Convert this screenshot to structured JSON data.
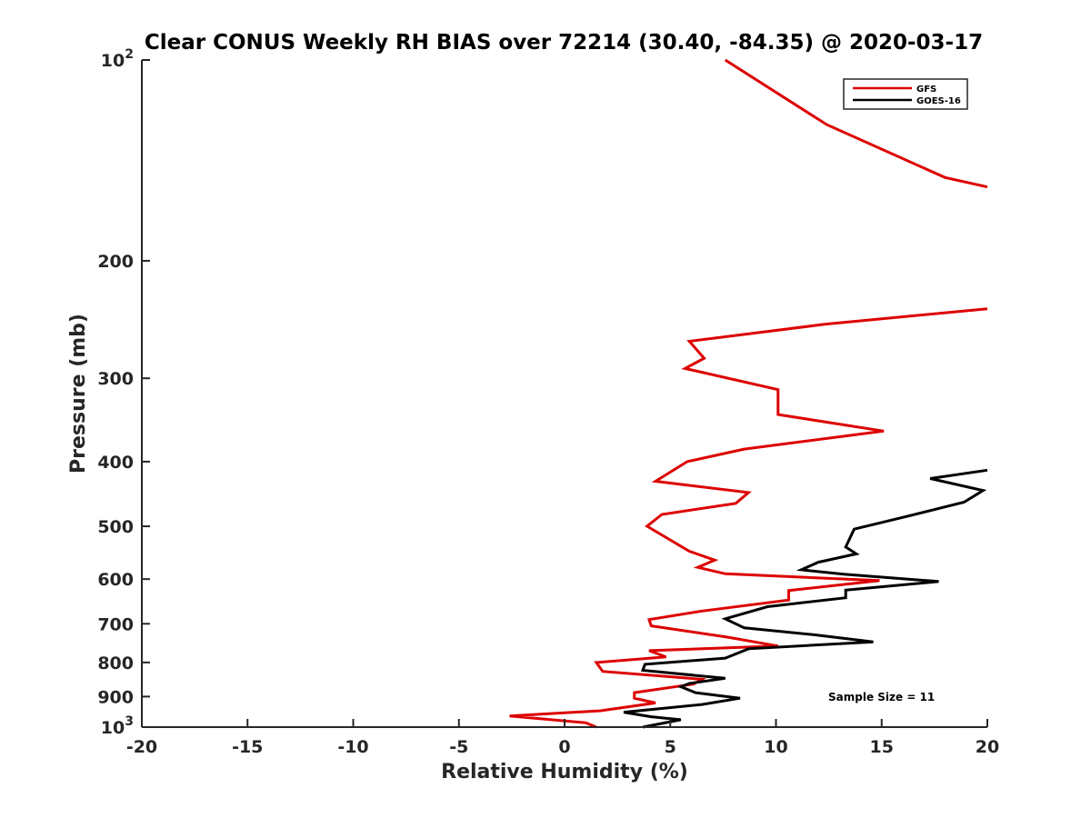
{
  "chart_data": {
    "type": "line",
    "title": "Clear CONUS Weekly RH BIAS over 72214 (30.40, -84.35) @ 2020-03-17",
    "xlabel": "Relative Humidity (%)",
    "ylabel": "Pressure (mb)",
    "xlim": [
      -20,
      20
    ],
    "ylim": [
      100,
      1000
    ],
    "yscale": "log",
    "y_reversed": true,
    "grid": false,
    "x_ticks": [
      -20,
      -15,
      -10,
      -5,
      0,
      5,
      10,
      15,
      20
    ],
    "x_tick_labels": [
      "-20",
      "-15",
      "-10",
      "-5",
      "0",
      "5",
      "10",
      "15",
      "20"
    ],
    "y_ticks": [
      100,
      200,
      300,
      400,
      500,
      600,
      700,
      800,
      900,
      1000
    ],
    "y_tick_labels": [
      {
        "base": "10",
        "exp": "2"
      },
      {
        "base": "200",
        "exp": ""
      },
      {
        "base": "300",
        "exp": ""
      },
      {
        "base": "400",
        "exp": ""
      },
      {
        "base": "500",
        "exp": ""
      },
      {
        "base": "600",
        "exp": ""
      },
      {
        "base": "700",
        "exp": ""
      },
      {
        "base": "800",
        "exp": ""
      },
      {
        "base": "900",
        "exp": ""
      },
      {
        "base": "10",
        "exp": "3"
      }
    ],
    "legend_position": "top-right",
    "annotation": "Sample Size = 11",
    "series": [
      {
        "name": "GFS",
        "color": "#dd0000",
        "points": [
          [
            7.6,
            100
          ],
          [
            12.4,
            125
          ],
          [
            18.0,
            150
          ],
          [
            20.0,
            155
          ],
          [
            null,
            null
          ],
          [
            20.0,
            236
          ],
          [
            12.3,
            249
          ],
          [
            5.9,
            264
          ],
          [
            6.6,
            280
          ],
          [
            5.7,
            290
          ],
          [
            10.1,
            312
          ],
          [
            10.1,
            340
          ],
          [
            15.1,
            360
          ],
          [
            8.5,
            383
          ],
          [
            5.8,
            400
          ],
          [
            4.3,
            428
          ],
          [
            8.7,
            445
          ],
          [
            8.1,
            462
          ],
          [
            4.6,
            480
          ],
          [
            3.9,
            500
          ],
          [
            5.9,
            545
          ],
          [
            7.1,
            562
          ],
          [
            6.3,
            576
          ],
          [
            7.6,
            589
          ],
          [
            14.9,
            603
          ],
          [
            10.6,
            624
          ],
          [
            10.6,
            645
          ],
          [
            6.5,
            670
          ],
          [
            4.0,
            690
          ],
          [
            4.1,
            705
          ],
          [
            7.7,
            733
          ],
          [
            10.1,
            756
          ],
          [
            4.0,
            768
          ],
          [
            4.8,
            785
          ],
          [
            1.5,
            800
          ],
          [
            1.8,
            825
          ],
          [
            6.5,
            848
          ],
          [
            6.1,
            862
          ],
          [
            3.3,
            888
          ],
          [
            3.3,
            905
          ],
          [
            4.3,
            920
          ],
          [
            1.7,
            945
          ],
          [
            -2.6,
            962
          ],
          [
            1.0,
            985
          ],
          [
            1.5,
            1000
          ]
        ]
      },
      {
        "name": "GOES-16",
        "color": "#000000",
        "points": [
          [
            20.0,
            412
          ],
          [
            17.3,
            424
          ],
          [
            19.8,
            442
          ],
          [
            18.9,
            460
          ],
          [
            16.1,
            484
          ],
          [
            13.7,
            505
          ],
          [
            13.3,
            537
          ],
          [
            13.8,
            550
          ],
          [
            12.0,
            566
          ],
          [
            11.2,
            581
          ],
          [
            13.2,
            590
          ],
          [
            17.7,
            605
          ],
          [
            13.3,
            623
          ],
          [
            13.3,
            640
          ],
          [
            9.6,
            660
          ],
          [
            7.6,
            688
          ],
          [
            8.5,
            710
          ],
          [
            11.8,
            727
          ],
          [
            14.6,
            745
          ],
          [
            8.7,
            763
          ],
          [
            7.6,
            788
          ],
          [
            3.8,
            805
          ],
          [
            3.7,
            822
          ],
          [
            7.6,
            845
          ],
          [
            5.9,
            860
          ],
          [
            5.5,
            870
          ],
          [
            6.2,
            888
          ],
          [
            8.3,
            905
          ],
          [
            6.5,
            925
          ],
          [
            2.8,
            950
          ],
          [
            4.1,
            965
          ],
          [
            5.5,
            975
          ],
          [
            3.7,
            1000
          ]
        ]
      }
    ]
  }
}
